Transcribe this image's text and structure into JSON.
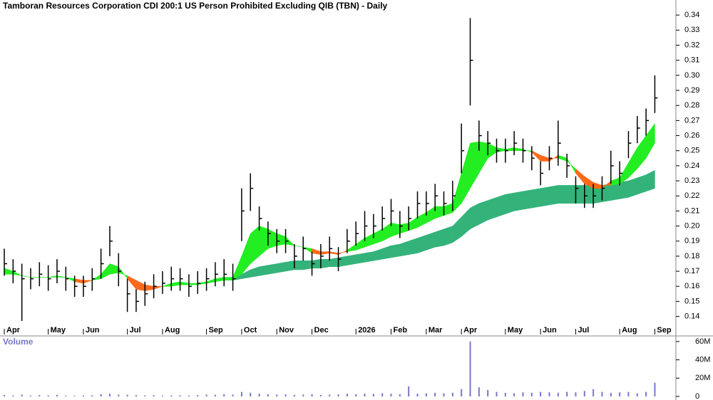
{
  "chart_data": {
    "type": "hlc",
    "title": "Tamboran Resources Corporation CDI 200:1 US Person Prohibited Excluding QIB (TBN) - Daily",
    "volume_label": "Volume",
    "categories": [
      "Apr",
      null,
      null,
      null,
      null,
      "May",
      null,
      null,
      null,
      "Jun",
      null,
      null,
      null,
      null,
      "Jul",
      null,
      null,
      null,
      "Aug",
      null,
      null,
      null,
      null,
      "Sep",
      null,
      null,
      null,
      "Oct",
      null,
      null,
      null,
      "Nov",
      null,
      null,
      null,
      "Dec",
      null,
      null,
      null,
      null,
      "2026",
      null,
      null,
      null,
      "Feb",
      null,
      null,
      null,
      "Mar",
      null,
      null,
      null,
      "Apr",
      null,
      null,
      null,
      null,
      "May",
      null,
      null,
      null,
      "Jun",
      null,
      null,
      null,
      "Jul",
      null,
      null,
      null,
      null,
      "Aug",
      null,
      null,
      null,
      "Sep"
    ],
    "high": [
      0.185,
      0.178,
      0.175,
      0.172,
      0.176,
      0.174,
      0.178,
      0.173,
      0.167,
      0.167,
      0.172,
      0.185,
      0.2,
      0.182,
      0.165,
      0.158,
      0.163,
      0.168,
      0.17,
      0.173,
      0.172,
      0.168,
      0.17,
      0.172,
      0.176,
      0.178,
      0.175,
      0.225,
      0.235,
      0.213,
      0.203,
      0.198,
      0.198,
      0.188,
      0.193,
      0.183,
      0.188,
      0.193,
      0.186,
      0.198,
      0.203,
      0.21,
      0.208,
      0.213,
      0.218,
      0.21,
      0.213,
      0.223,
      0.223,
      0.228,
      0.223,
      0.23,
      0.268,
      0.338,
      0.27,
      0.263,
      0.258,
      0.258,
      0.263,
      0.258,
      0.253,
      0.243,
      0.253,
      0.27,
      0.248,
      0.233,
      0.228,
      0.228,
      0.233,
      0.25,
      0.243,
      0.263,
      0.273,
      0.278,
      0.3
    ],
    "low": [
      0.167,
      0.162,
      0.137,
      0.158,
      0.16,
      0.157,
      0.162,
      0.157,
      0.153,
      0.153,
      0.157,
      0.165,
      0.18,
      0.16,
      0.143,
      0.143,
      0.147,
      0.152,
      0.155,
      0.157,
      0.157,
      0.153,
      0.155,
      0.157,
      0.16,
      0.16,
      0.157,
      0.19,
      0.21,
      0.197,
      0.187,
      0.182,
      0.182,
      0.172,
      0.177,
      0.167,
      0.172,
      0.177,
      0.17,
      0.182,
      0.187,
      0.19,
      0.192,
      0.197,
      0.2,
      0.192,
      0.197,
      0.205,
      0.207,
      0.21,
      0.207,
      0.21,
      0.235,
      0.28,
      0.25,
      0.247,
      0.242,
      0.242,
      0.247,
      0.242,
      0.237,
      0.227,
      0.237,
      0.24,
      0.232,
      0.215,
      0.212,
      0.212,
      0.217,
      0.228,
      0.227,
      0.245,
      0.255,
      0.26,
      0.275
    ],
    "close": [
      0.175,
      0.17,
      0.165,
      0.165,
      0.168,
      0.165,
      0.17,
      0.165,
      0.16,
      0.16,
      0.165,
      0.175,
      0.19,
      0.17,
      0.155,
      0.15,
      0.155,
      0.16,
      0.162,
      0.165,
      0.165,
      0.16,
      0.162,
      0.165,
      0.168,
      0.168,
      0.165,
      0.21,
      0.225,
      0.205,
      0.195,
      0.19,
      0.19,
      0.18,
      0.185,
      0.175,
      0.18,
      0.185,
      0.178,
      0.19,
      0.195,
      0.2,
      0.2,
      0.205,
      0.21,
      0.2,
      0.205,
      0.215,
      0.215,
      0.22,
      0.215,
      0.22,
      0.25,
      0.31,
      0.26,
      0.255,
      0.25,
      0.25,
      0.255,
      0.25,
      0.245,
      0.235,
      0.245,
      0.255,
      0.24,
      0.225,
      0.22,
      0.22,
      0.225,
      0.24,
      0.235,
      0.255,
      0.265,
      0.27,
      0.285
    ],
    "short_band": {
      "fast": [
        0.172,
        0.17,
        0.167,
        0.166,
        0.166,
        0.166,
        0.167,
        0.166,
        0.163,
        0.162,
        0.164,
        0.168,
        0.175,
        0.173,
        0.165,
        0.158,
        0.157,
        0.158,
        0.16,
        0.162,
        0.163,
        0.162,
        0.162,
        0.163,
        0.165,
        0.166,
        0.166,
        0.18,
        0.195,
        0.2,
        0.198,
        0.195,
        0.193,
        0.187,
        0.186,
        0.182,
        0.181,
        0.182,
        0.181,
        0.184,
        0.188,
        0.192,
        0.195,
        0.198,
        0.202,
        0.201,
        0.202,
        0.206,
        0.209,
        0.213,
        0.213,
        0.215,
        0.235,
        0.255,
        0.256,
        0.255,
        0.252,
        0.251,
        0.252,
        0.251,
        0.249,
        0.243,
        0.243,
        0.247,
        0.245,
        0.235,
        0.228,
        0.225,
        0.225,
        0.23,
        0.232,
        0.242,
        0.252,
        0.26,
        0.268
      ],
      "slow": [
        0.168,
        0.168,
        0.167,
        0.166,
        0.166,
        0.166,
        0.166,
        0.166,
        0.165,
        0.164,
        0.164,
        0.165,
        0.168,
        0.169,
        0.167,
        0.164,
        0.161,
        0.16,
        0.16,
        0.16,
        0.161,
        0.161,
        0.161,
        0.162,
        0.163,
        0.164,
        0.164,
        0.168,
        0.175,
        0.18,
        0.185,
        0.187,
        0.188,
        0.187,
        0.186,
        0.185,
        0.183,
        0.183,
        0.182,
        0.183,
        0.184,
        0.186,
        0.188,
        0.19,
        0.193,
        0.195,
        0.197,
        0.199,
        0.202,
        0.205,
        0.207,
        0.209,
        0.215,
        0.225,
        0.235,
        0.245,
        0.249,
        0.25,
        0.25,
        0.25,
        0.25,
        0.247,
        0.245,
        0.245,
        0.243,
        0.238,
        0.233,
        0.229,
        0.227,
        0.227,
        0.228,
        0.232,
        0.238,
        0.245,
        0.255
      ],
      "up_color": "#22ee22",
      "down_color": "#ff6a1a"
    },
    "long_band": {
      "upper": [
        null,
        null,
        null,
        null,
        null,
        null,
        null,
        null,
        null,
        null,
        null,
        null,
        null,
        null,
        null,
        null,
        null,
        null,
        null,
        null,
        null,
        null,
        null,
        null,
        null,
        null,
        0.166,
        0.168,
        0.171,
        0.173,
        0.174,
        0.175,
        0.176,
        0.177,
        0.177,
        0.177,
        0.178,
        0.178,
        0.179,
        0.18,
        0.181,
        0.182,
        0.183,
        0.185,
        0.187,
        0.188,
        0.19,
        0.192,
        0.194,
        0.196,
        0.198,
        0.2,
        0.206,
        0.212,
        0.215,
        0.217,
        0.219,
        0.221,
        0.222,
        0.223,
        0.224,
        0.225,
        0.226,
        0.227,
        0.227,
        0.227,
        0.227,
        0.227,
        0.227,
        0.228,
        0.229,
        0.23,
        0.232,
        0.234,
        0.237
      ],
      "lower": [
        null,
        null,
        null,
        null,
        null,
        null,
        null,
        null,
        null,
        null,
        null,
        null,
        null,
        null,
        null,
        null,
        null,
        null,
        null,
        null,
        null,
        null,
        null,
        null,
        null,
        null,
        0.164,
        0.165,
        0.166,
        0.167,
        0.168,
        0.169,
        0.17,
        0.171,
        0.171,
        0.172,
        0.172,
        0.173,
        0.173,
        0.174,
        0.175,
        0.176,
        0.177,
        0.178,
        0.179,
        0.18,
        0.181,
        0.182,
        0.184,
        0.186,
        0.187,
        0.189,
        0.193,
        0.198,
        0.201,
        0.204,
        0.206,
        0.208,
        0.21,
        0.211,
        0.212,
        0.213,
        0.214,
        0.215,
        0.215,
        0.215,
        0.215,
        0.215,
        0.216,
        0.217,
        0.218,
        0.219,
        0.221,
        0.223,
        0.225
      ],
      "color": "#33b37a"
    },
    "bar_color": "#000000",
    "ylim": [
      0.128,
      0.35
    ],
    "yticks": [
      0.14,
      0.15,
      0.16,
      0.17,
      0.18,
      0.19,
      {
        "value": 0.2,
        "label": "0.20"
      },
      0.21,
      0.22,
      0.23,
      0.24,
      0.25,
      0.26,
      0.27,
      0.28,
      0.29,
      {
        "value": 0.3,
        "label": "0.30"
      },
      0.31,
      0.32,
      0.33,
      0.34
    ],
    "volume": [
      1500000,
      1200000,
      2000000,
      1000000,
      1500000,
      1200000,
      1800000,
      1000000,
      900000,
      1100000,
      1300000,
      2500000,
      3000000,
      2000000,
      1800000,
      1500000,
      1200000,
      1400000,
      1000000,
      1200000,
      1300000,
      1100000,
      1500000,
      2000000,
      1800000,
      2500000,
      2000000,
      5000000,
      4000000,
      3000000,
      2500000,
      2000000,
      2200000,
      1800000,
      2000000,
      2500000,
      1600000,
      2000000,
      2200000,
      3000000,
      2500000,
      3000000,
      2800000,
      3500000,
      3000000,
      2500000,
      11000000,
      3000000,
      3500000,
      4000000,
      3500000,
      4000000,
      8000000,
      60000000,
      10000000,
      7000000,
      5000000,
      4000000,
      3500000,
      4500000,
      4000000,
      5000000,
      4500000,
      4000000,
      5000000,
      4500000,
      6000000,
      8000000,
      5000000,
      4000000,
      4500000,
      5000000,
      3500000,
      5000000,
      15000000
    ],
    "volume_color": "#7777cc",
    "volume_ylim": [
      0,
      63000000
    ],
    "volume_ticks": [
      0,
      {
        "value": 20000000,
        "label": "20M"
      },
      {
        "value": 40000000,
        "label": "40M"
      },
      {
        "value": 60000000,
        "label": "60M"
      }
    ]
  }
}
